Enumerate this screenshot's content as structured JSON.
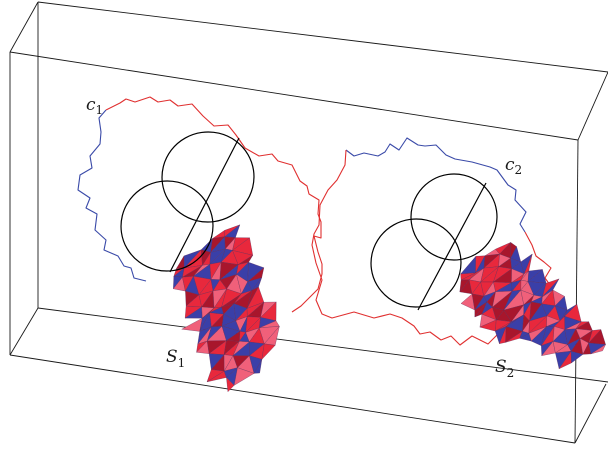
{
  "labels": {
    "c1": {
      "main": "c",
      "sub": "1"
    },
    "c2": {
      "main": "c",
      "sub": "2"
    },
    "s1": {
      "main": "S",
      "sub": "1"
    },
    "s2": {
      "main": "S",
      "sub": "2"
    }
  },
  "colors": {
    "surface_red": "#e8283c",
    "surface_blue": "#3a3fa8",
    "surface_dark_red": "#a8162c",
    "surface_pink": "#f0607a",
    "curve_red": "#e03030",
    "curve_blue": "#3a4aa8",
    "ring": "#000000",
    "box": "#1a1a1a"
  }
}
